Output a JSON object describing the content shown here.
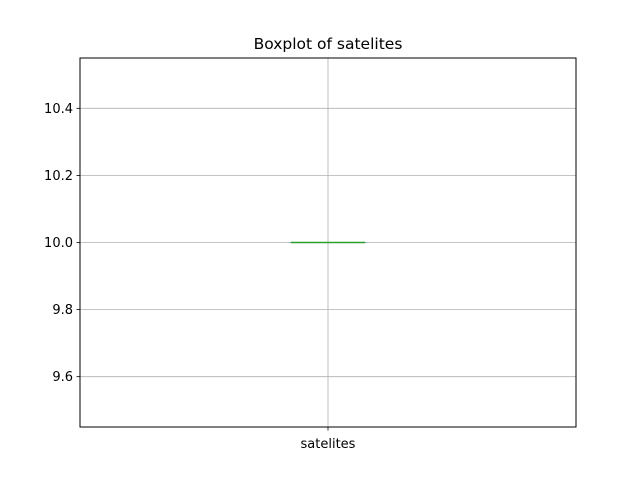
{
  "chart_data": {
    "type": "box",
    "title": "Boxplot of satelites",
    "xlabel": "",
    "ylabel": "",
    "categories": [
      "satelites"
    ],
    "series": [
      {
        "category": "satelites",
        "min": 10.0,
        "q1": 10.0,
        "median": 10.0,
        "q3": 10.0,
        "max": 10.0
      }
    ],
    "ylim": [
      9.45,
      10.55
    ],
    "yticks": [
      9.6,
      9.8,
      10.0,
      10.2,
      10.4
    ],
    "ytick_labels": [
      "9.6",
      "9.8",
      "10.0",
      "10.2",
      "10.4"
    ],
    "grid": true,
    "colors": {
      "grid": "#b0b0b0",
      "box": "#1f77b4",
      "median": "#2ca02c",
      "axes": "#000000"
    }
  }
}
